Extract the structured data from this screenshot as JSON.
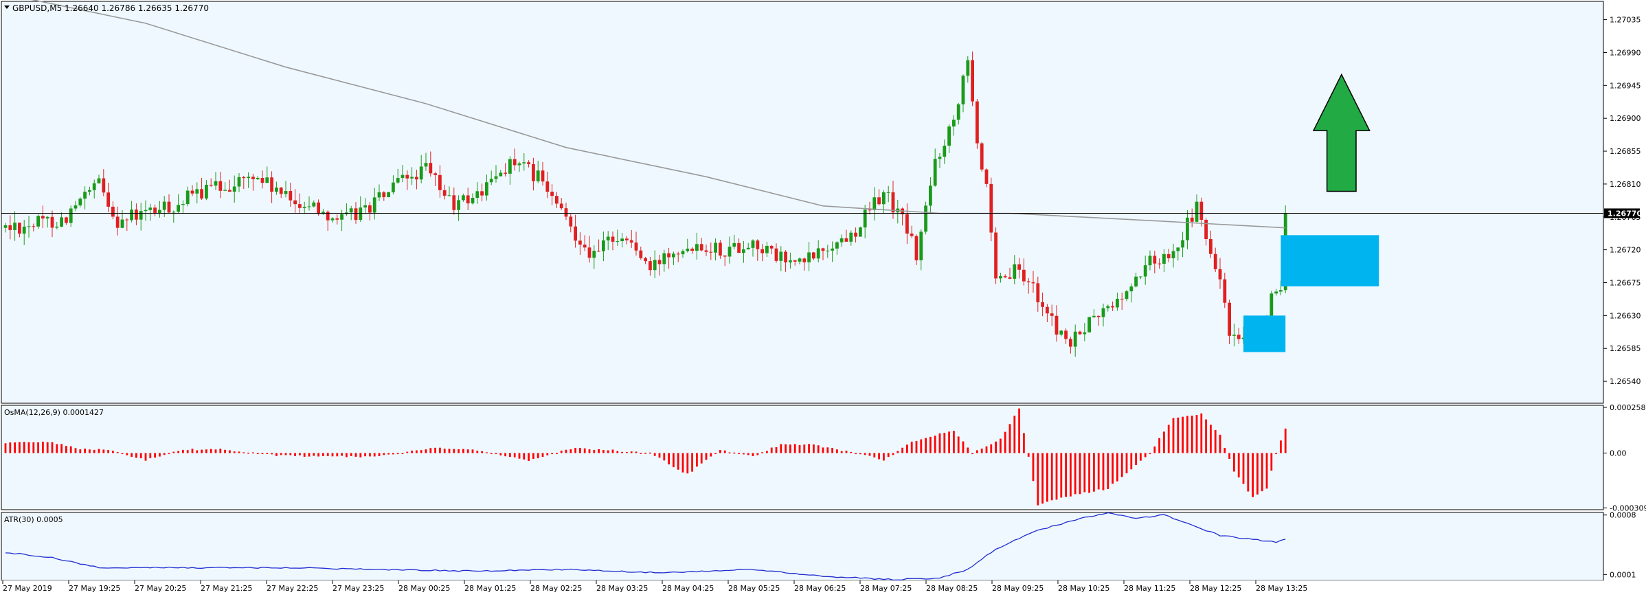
{
  "symbol_header": "GBPUSD,M5  1.26640 1.26786 1.26635 1.26770",
  "current_price_label": "1.26770",
  "colors": {
    "background": "#eff8ff",
    "axis_panel": "#ffffff",
    "bull_candle": "#1a9a1a",
    "bear_candle": "#e02020",
    "moving_average": "#999999",
    "osma_bars": "#ff0000",
    "atr_line": "#1f2bd0",
    "zone_fill": "#00b4f0",
    "arrow_fill": "#22aa44",
    "price_line": "#000000"
  },
  "chart_data": [
    {
      "type": "candlestick",
      "name": "GBPUSD,M5",
      "y_ticks": [
        "1.27035",
        "1.26990",
        "1.26945",
        "1.26900",
        "1.26855",
        "1.26810",
        "1.26765",
        "1.26720",
        "1.26675",
        "1.26630",
        "1.26585",
        "1.26540"
      ],
      "ylim": [
        1.2651,
        1.2706
      ],
      "x_ticks": [
        "27 May 2019",
        "27 May 19:25",
        "27 May 20:25",
        "27 May 21:25",
        "27 May 22:25",
        "27 May 23:25",
        "28 May 00:25",
        "28 May 01:25",
        "28 May 02:25",
        "28 May 03:25",
        "28 May 04:25",
        "28 May 05:25",
        "28 May 06:25",
        "28 May 07:25",
        "28 May 08:25",
        "28 May 09:25",
        "28 May 10:25",
        "28 May 11:25",
        "28 May 12:25",
        "28 May 13:25"
      ],
      "close_path": [
        [
          0,
          1.2675
        ],
        [
          10,
          1.2676
        ],
        [
          12,
          1.2676
        ],
        [
          20,
          1.2681
        ],
        [
          24,
          1.2676
        ],
        [
          30,
          1.2677
        ],
        [
          36,
          1.2678
        ],
        [
          42,
          1.268
        ],
        [
          48,
          1.2681
        ],
        [
          54,
          1.2682
        ],
        [
          60,
          1.2679
        ],
        [
          66,
          1.2678
        ],
        [
          72,
          1.2676
        ],
        [
          78,
          1.2678
        ],
        [
          84,
          1.2681
        ],
        [
          90,
          1.2683
        ],
        [
          96,
          1.2678
        ],
        [
          102,
          1.268
        ],
        [
          108,
          1.2684
        ],
        [
          114,
          1.2682
        ],
        [
          120,
          1.2676
        ],
        [
          126,
          1.2671
        ],
        [
          130,
          1.2674
        ],
        [
          134,
          1.2673
        ],
        [
          138,
          1.2669
        ],
        [
          142,
          1.2672
        ],
        [
          148,
          1.2673
        ],
        [
          154,
          1.2672
        ],
        [
          160,
          1.2673
        ],
        [
          165,
          1.2671
        ],
        [
          170,
          1.267
        ],
        [
          175,
          1.2672
        ],
        [
          181,
          1.2674
        ],
        [
          188,
          1.268
        ],
        [
          193,
          1.2675
        ],
        [
          195,
          1.2671
        ],
        [
          199,
          1.2684
        ],
        [
          203,
          1.269
        ],
        [
          206,
          1.2699
        ],
        [
          208,
          1.2687
        ],
        [
          210,
          1.268
        ],
        [
          212,
          1.2667
        ],
        [
          216,
          1.2669
        ],
        [
          220,
          1.2667
        ],
        [
          224,
          1.2662
        ],
        [
          228,
          1.2659
        ],
        [
          232,
          1.2662
        ],
        [
          236,
          1.2664
        ],
        [
          240,
          1.2666
        ],
        [
          244,
          1.267
        ],
        [
          248,
          1.2671
        ],
        [
          252,
          1.2674
        ],
        [
          255,
          1.2678
        ],
        [
          257,
          1.2673
        ],
        [
          260,
          1.2668
        ],
        [
          262,
          1.266
        ],
        [
          265,
          1.2659
        ],
        [
          268,
          1.2661
        ],
        [
          271,
          1.2665
        ],
        [
          273,
          1.2666
        ],
        [
          274,
          1.2677
        ]
      ],
      "moving_average": [
        [
          0,
          1.2707
        ],
        [
          30,
          1.2703
        ],
        [
          60,
          1.2697
        ],
        [
          90,
          1.2692
        ],
        [
          120,
          1.2686
        ],
        [
          150,
          1.2682
        ],
        [
          175,
          1.2678
        ],
        [
          200,
          1.2677
        ],
        [
          215,
          1.2677
        ],
        [
          245,
          1.2676
        ],
        [
          274,
          1.2675
        ]
      ],
      "annotations": [
        {
          "kind": "zone",
          "x0": 265,
          "x1": 274,
          "price_top": 1.2663,
          "price_bottom": 1.2658
        },
        {
          "kind": "zone",
          "x0": 273,
          "x1": 294,
          "price_top": 1.2674,
          "price_bottom": 1.2667
        },
        {
          "kind": "arrow-up",
          "x0": 280,
          "x1": 292,
          "price_top": 1.2696,
          "price_bottom": 1.268
        }
      ]
    },
    {
      "type": "bar",
      "name": "OsMA(12,26,9) 0.0001427",
      "y_ticks": [
        "0.0002583",
        "0.00",
        "-0.0003098"
      ],
      "ylim": [
        -0.00032,
        0.00027
      ],
      "path": [
        [
          0,
          6e-05
        ],
        [
          10,
          6e-05
        ],
        [
          16,
          2e-05
        ],
        [
          22,
          2e-05
        ],
        [
          30,
          -4e-05
        ],
        [
          38,
          2e-05
        ],
        [
          46,
          2e-05
        ],
        [
          56,
          -1e-05
        ],
        [
          66,
          -2e-05
        ],
        [
          80,
          -2e-05
        ],
        [
          92,
          3e-05
        ],
        [
          100,
          2e-05
        ],
        [
          112,
          -4e-05
        ],
        [
          122,
          3e-05
        ],
        [
          138,
          0.0
        ],
        [
          146,
          -0.00012
        ],
        [
          153,
          2e-05
        ],
        [
          160,
          -2e-05
        ],
        [
          166,
          5e-05
        ],
        [
          172,
          5e-05
        ],
        [
          182,
          0.0
        ],
        [
          188,
          -4e-05
        ],
        [
          194,
          6e-05
        ],
        [
          203,
          0.00013
        ],
        [
          207,
          0.0
        ],
        [
          213,
          8e-05
        ],
        [
          217,
          0.00025
        ],
        [
          221,
          -0.0003
        ],
        [
          226,
          -0.00025
        ],
        [
          236,
          -0.0002
        ],
        [
          245,
          0.0
        ],
        [
          250,
          0.0002
        ],
        [
          256,
          0.00022
        ],
        [
          260,
          0.0001
        ],
        [
          263,
          -0.0001
        ],
        [
          267,
          -0.00025
        ],
        [
          270,
          -0.0002
        ],
        [
          272,
          0.0
        ],
        [
          274,
          0.00014
        ]
      ]
    },
    {
      "type": "line",
      "name": "ATR(30) 0.0005",
      "y_ticks": [
        "0.0008",
        "0.0001"
      ],
      "ylim": [
        3e-05,
        0.00083
      ],
      "path": [
        [
          0,
          0.00036
        ],
        [
          10,
          0.0003
        ],
        [
          20,
          0.00018
        ],
        [
          40,
          0.00018
        ],
        [
          60,
          0.00018
        ],
        [
          80,
          0.00016
        ],
        [
          100,
          0.00014
        ],
        [
          120,
          0.00016
        ],
        [
          140,
          0.00012
        ],
        [
          160,
          0.00016
        ],
        [
          175,
          8e-05
        ],
        [
          190,
          4e-05
        ],
        [
          200,
          6e-05
        ],
        [
          206,
          0.00016
        ],
        [
          212,
          0.0004
        ],
        [
          220,
          0.0006
        ],
        [
          230,
          0.00076
        ],
        [
          236,
          0.00082
        ],
        [
          242,
          0.00076
        ],
        [
          248,
          0.0008
        ],
        [
          254,
          0.00068
        ],
        [
          260,
          0.00056
        ],
        [
          266,
          0.00052
        ],
        [
          272,
          0.00048
        ],
        [
          274,
          0.00052
        ]
      ]
    }
  ]
}
